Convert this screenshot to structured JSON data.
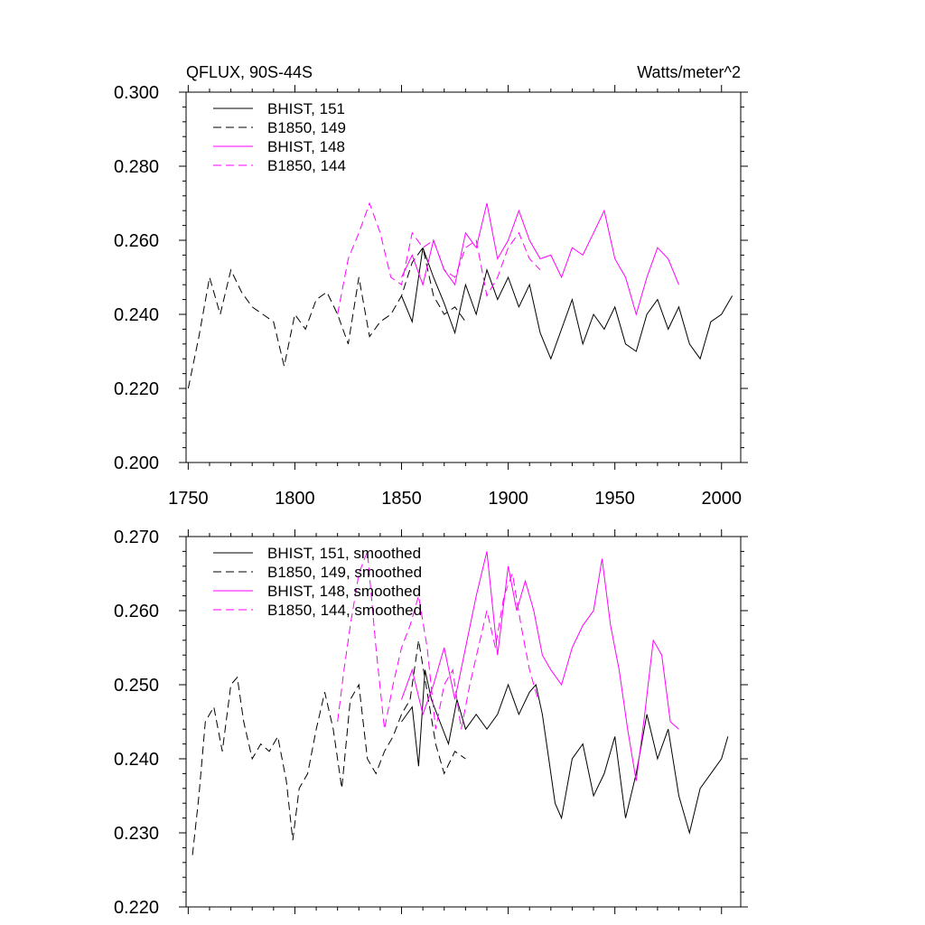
{
  "colors": {
    "black": "#000000",
    "magenta": "#ff00ff"
  },
  "chart_data": [
    {
      "type": "line",
      "title_left": "QFLUX, 90S-44S",
      "title_right": "Watts/meter^2",
      "xlabel": "",
      "ylabel": "",
      "xlim": [
        1749,
        2009
      ],
      "ylim": [
        0.2,
        0.3
      ],
      "xticks": [
        "1750",
        "1800",
        "1850",
        "1900",
        "1950",
        "2000"
      ],
      "yticks": [
        "0.200",
        "0.220",
        "0.240",
        "0.260",
        "0.280",
        "0.300"
      ],
      "legend_position": "top-left",
      "series": [
        {
          "name": "BHIST, 151",
          "color": "#000000",
          "dash": "solid",
          "x": [
            1850,
            1855,
            1860,
            1865,
            1870,
            1875,
            1880,
            1885,
            1890,
            1895,
            1900,
            1905,
            1910,
            1915,
            1920,
            1925,
            1930,
            1935,
            1940,
            1945,
            1950,
            1955,
            1960,
            1965,
            1970,
            1975,
            1980,
            1985,
            1990,
            1995,
            2000,
            2005
          ],
          "y": [
            0.245,
            0.238,
            0.258,
            0.25,
            0.243,
            0.235,
            0.248,
            0.24,
            0.252,
            0.244,
            0.25,
            0.242,
            0.248,
            0.235,
            0.228,
            0.236,
            0.244,
            0.232,
            0.24,
            0.236,
            0.242,
            0.232,
            0.23,
            0.24,
            0.244,
            0.236,
            0.242,
            0.232,
            0.228,
            0.238,
            0.24,
            0.245
          ]
        },
        {
          "name": "B1850, 149",
          "color": "#000000",
          "dash": "dashed",
          "x": [
            1750,
            1755,
            1760,
            1765,
            1770,
            1775,
            1780,
            1785,
            1790,
            1795,
            1800,
            1805,
            1810,
            1815,
            1820,
            1825,
            1830,
            1835,
            1840,
            1845,
            1850,
            1855,
            1860,
            1865,
            1870,
            1875,
            1880
          ],
          "y": [
            0.22,
            0.234,
            0.25,
            0.24,
            0.252,
            0.246,
            0.242,
            0.24,
            0.238,
            0.226,
            0.24,
            0.236,
            0.244,
            0.246,
            0.24,
            0.232,
            0.25,
            0.234,
            0.238,
            0.24,
            0.245,
            0.254,
            0.258,
            0.245,
            0.24,
            0.242,
            0.238
          ]
        },
        {
          "name": "BHIST, 148",
          "color": "#ff00ff",
          "dash": "solid",
          "x": [
            1850,
            1855,
            1860,
            1865,
            1870,
            1875,
            1880,
            1885,
            1890,
            1895,
            1900,
            1905,
            1910,
            1915,
            1920,
            1925,
            1930,
            1935,
            1940,
            1945,
            1950,
            1955,
            1960,
            1965,
            1970,
            1975,
            1980
          ],
          "y": [
            0.25,
            0.256,
            0.248,
            0.26,
            0.252,
            0.248,
            0.262,
            0.258,
            0.27,
            0.255,
            0.26,
            0.268,
            0.26,
            0.255,
            0.256,
            0.25,
            0.258,
            0.256,
            0.262,
            0.268,
            0.255,
            0.25,
            0.24,
            0.25,
            0.258,
            0.255,
            0.248
          ]
        },
        {
          "name": "B1850, 144",
          "color": "#ff00ff",
          "dash": "dashed",
          "x": [
            1820,
            1825,
            1830,
            1835,
            1840,
            1845,
            1850,
            1855,
            1860,
            1865,
            1870,
            1875,
            1880,
            1885,
            1890,
            1895,
            1900,
            1905,
            1910,
            1915
          ],
          "y": [
            0.24,
            0.255,
            0.262,
            0.27,
            0.262,
            0.25,
            0.248,
            0.262,
            0.258,
            0.26,
            0.252,
            0.25,
            0.258,
            0.26,
            0.245,
            0.25,
            0.258,
            0.262,
            0.255,
            0.252
          ]
        }
      ]
    },
    {
      "type": "line",
      "xlabel": "",
      "ylabel": "",
      "xlim": [
        1749,
        2009
      ],
      "ylim": [
        0.22,
        0.27
      ],
      "yticks": [
        "0.220",
        "0.230",
        "0.240",
        "0.250",
        "0.260",
        "0.270"
      ],
      "legend_position": "top-left",
      "series": [
        {
          "name": "BHIST, 151, smoothed",
          "color": "#000000",
          "dash": "solid",
          "x": [
            1850,
            1855,
            1858,
            1861,
            1864,
            1868,
            1872,
            1876,
            1880,
            1885,
            1890,
            1895,
            1900,
            1905,
            1910,
            1913,
            1916,
            1919,
            1922,
            1925,
            1930,
            1935,
            1940,
            1945,
            1950,
            1955,
            1960,
            1965,
            1970,
            1975,
            1980,
            1985,
            1990,
            1995,
            2000,
            2003
          ],
          "y": [
            0.245,
            0.247,
            0.239,
            0.252,
            0.248,
            0.245,
            0.242,
            0.248,
            0.244,
            0.246,
            0.244,
            0.246,
            0.25,
            0.246,
            0.249,
            0.25,
            0.246,
            0.24,
            0.234,
            0.232,
            0.24,
            0.242,
            0.235,
            0.238,
            0.243,
            0.232,
            0.238,
            0.246,
            0.24,
            0.244,
            0.235,
            0.23,
            0.236,
            0.238,
            0.24,
            0.243
          ]
        },
        {
          "name": "B1850, 149, smoothed",
          "color": "#000000",
          "dash": "dashed",
          "x": [
            1752,
            1755,
            1758,
            1762,
            1766,
            1770,
            1773,
            1776,
            1780,
            1784,
            1788,
            1792,
            1796,
            1799,
            1802,
            1806,
            1810,
            1814,
            1818,
            1822,
            1826,
            1830,
            1834,
            1838,
            1842,
            1846,
            1850,
            1854,
            1858,
            1862,
            1866,
            1870,
            1875,
            1880
          ],
          "y": [
            0.227,
            0.235,
            0.245,
            0.247,
            0.241,
            0.25,
            0.251,
            0.245,
            0.24,
            0.242,
            0.241,
            0.243,
            0.237,
            0.229,
            0.236,
            0.238,
            0.244,
            0.249,
            0.244,
            0.236,
            0.248,
            0.25,
            0.24,
            0.238,
            0.241,
            0.243,
            0.246,
            0.248,
            0.256,
            0.249,
            0.242,
            0.238,
            0.241,
            0.24
          ]
        },
        {
          "name": "BHIST, 148, smoothed",
          "color": "#ff00ff",
          "dash": "solid",
          "x": [
            1850,
            1855,
            1860,
            1865,
            1870,
            1875,
            1880,
            1885,
            1890,
            1895,
            1900,
            1904,
            1908,
            1912,
            1916,
            1920,
            1925,
            1930,
            1935,
            1940,
            1944,
            1948,
            1952,
            1956,
            1960,
            1964,
            1968,
            1972,
            1976,
            1980
          ],
          "y": [
            0.248,
            0.252,
            0.246,
            0.25,
            0.255,
            0.248,
            0.255,
            0.262,
            0.268,
            0.254,
            0.266,
            0.26,
            0.264,
            0.26,
            0.254,
            0.252,
            0.25,
            0.255,
            0.258,
            0.26,
            0.267,
            0.258,
            0.252,
            0.244,
            0.237,
            0.246,
            0.256,
            0.254,
            0.245,
            0.244
          ]
        },
        {
          "name": "B1850, 144, smoothed",
          "color": "#ff00ff",
          "dash": "dashed",
          "x": [
            1820,
            1823,
            1826,
            1830,
            1834,
            1838,
            1842,
            1846,
            1850,
            1854,
            1858,
            1862,
            1866,
            1870,
            1874,
            1878,
            1882,
            1886,
            1890,
            1894,
            1898,
            1902,
            1906,
            1910,
            1914
          ],
          "y": [
            0.245,
            0.252,
            0.258,
            0.265,
            0.268,
            0.255,
            0.244,
            0.25,
            0.255,
            0.258,
            0.262,
            0.255,
            0.244,
            0.25,
            0.252,
            0.244,
            0.25,
            0.255,
            0.26,
            0.255,
            0.262,
            0.265,
            0.258,
            0.252,
            0.248
          ]
        }
      ]
    }
  ]
}
